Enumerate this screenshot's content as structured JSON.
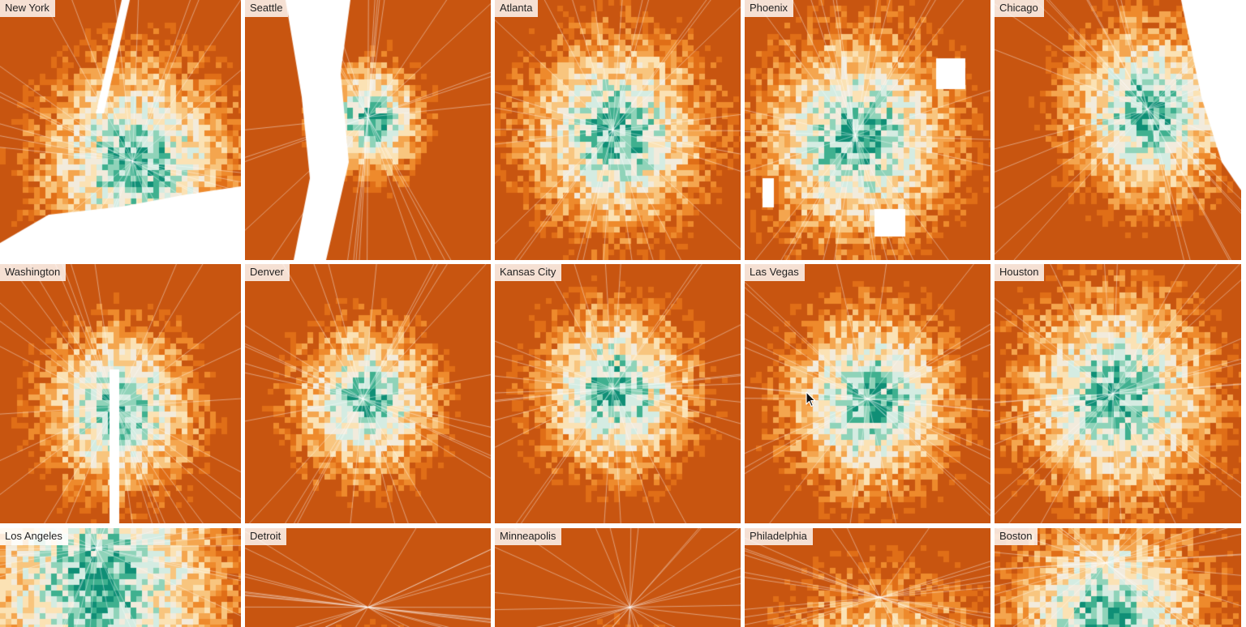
{
  "cities": [
    {
      "name": "New York",
      "icon": "choropleth-map-icon"
    },
    {
      "name": "Seattle",
      "icon": "choropleth-map-icon"
    },
    {
      "name": "Atlanta",
      "icon": "choropleth-map-icon"
    },
    {
      "name": "Phoenix",
      "icon": "choropleth-map-icon"
    },
    {
      "name": "Chicago",
      "icon": "choropleth-map-icon"
    },
    {
      "name": "Washington",
      "icon": "choropleth-map-icon"
    },
    {
      "name": "Denver",
      "icon": "choropleth-map-icon"
    },
    {
      "name": "Kansas City",
      "icon": "choropleth-map-icon"
    },
    {
      "name": "Las Vegas",
      "icon": "choropleth-map-icon"
    },
    {
      "name": "Houston",
      "icon": "choropleth-map-icon"
    },
    {
      "name": "Los Angeles",
      "icon": "choropleth-map-icon"
    },
    {
      "name": "Detroit",
      "icon": "choropleth-map-icon"
    },
    {
      "name": "Minneapolis",
      "icon": "choropleth-map-icon"
    },
    {
      "name": "Philadelphia",
      "icon": "choropleth-map-icon"
    },
    {
      "name": "Boston",
      "icon": "choropleth-map-icon"
    }
  ],
  "color_scale": [
    "#0f8f76",
    "#3fb08f",
    "#8fd3b9",
    "#d4ece2",
    "#f2ebdc",
    "#fbe2b4",
    "#f8c57e",
    "#f4a54e",
    "#ee8a2c",
    "#e06e17",
    "#c85510"
  ],
  "cursor_icon": "mouse-pointer-icon"
}
